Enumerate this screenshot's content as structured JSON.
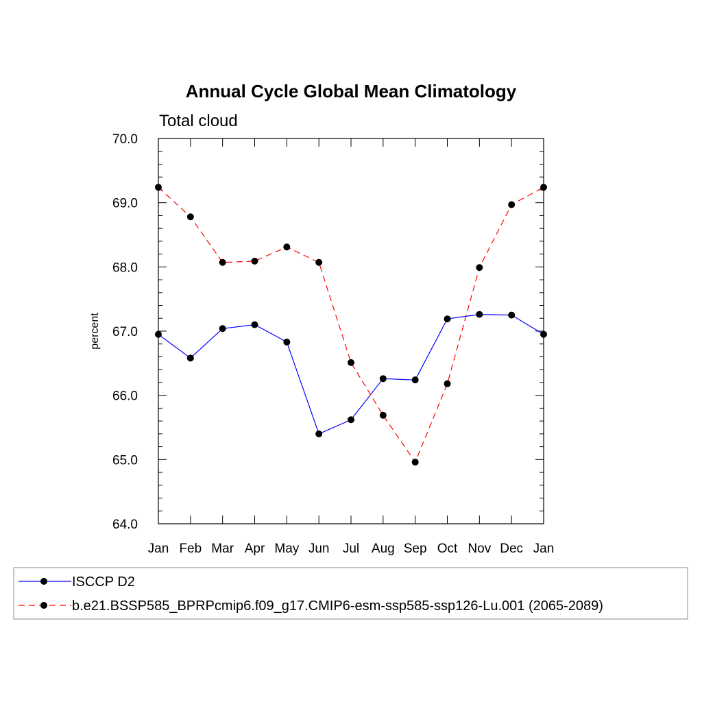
{
  "chart_data": {
    "type": "line",
    "title": "Annual Cycle Global Mean Climatology",
    "subtitle": "Total cloud",
    "xlabel": "",
    "ylabel": "percent",
    "ylim": [
      64.0,
      70.0
    ],
    "y_ticks": [
      "64.0",
      "65.0",
      "66.0",
      "67.0",
      "68.0",
      "69.0",
      "70.0"
    ],
    "categories": [
      "Jan",
      "Feb",
      "Mar",
      "Apr",
      "May",
      "Jun",
      "Jul",
      "Aug",
      "Sep",
      "Oct",
      "Nov",
      "Dec",
      "Jan"
    ],
    "grid": false,
    "legend_position": "bottom",
    "series": [
      {
        "name": "ISCCP D2",
        "color": "#0000ff",
        "dash": "solid",
        "marker": "filled-circle",
        "values": [
          66.95,
          66.58,
          67.04,
          67.1,
          66.83,
          65.4,
          65.62,
          66.26,
          66.24,
          67.19,
          67.26,
          67.25,
          66.95
        ]
      },
      {
        "name": "b.e21.BSSP585_BPRPcmip6.f09_g17.CMIP6-esm-ssp585-ssp126-Lu.001 (2065-2089)",
        "color": "#ff0000",
        "dash": "dashed",
        "marker": "filled-circle",
        "values": [
          69.24,
          68.78,
          68.07,
          68.09,
          68.31,
          68.07,
          66.51,
          65.69,
          64.96,
          66.18,
          67.99,
          68.97,
          69.24
        ]
      }
    ]
  }
}
